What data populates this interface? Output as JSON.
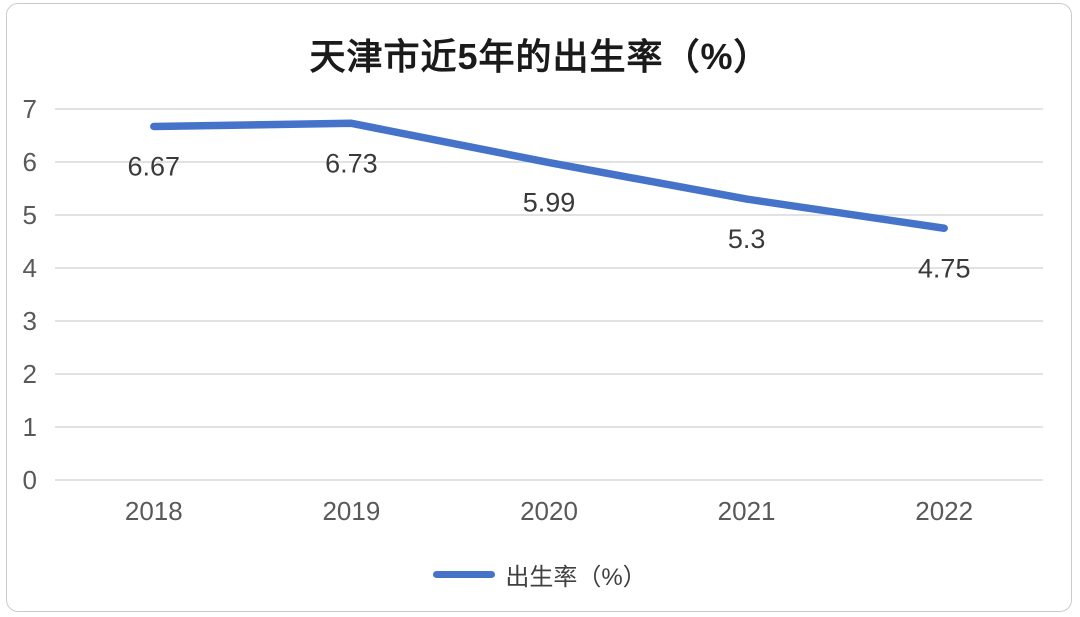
{
  "chart_data": {
    "type": "line",
    "title": "天津市近5年的出生率（%）",
    "categories": [
      "2018",
      "2019",
      "2020",
      "2021",
      "2022"
    ],
    "series": [
      {
        "name": "出生率（%）",
        "values": [
          6.67,
          6.73,
          5.99,
          5.3,
          4.75
        ],
        "color": "#4573c9"
      }
    ],
    "data_labels": [
      "6.67",
      "6.73",
      "5.99",
      "5.3",
      "4.75"
    ],
    "ylim": [
      0,
      7
    ],
    "yticks": [
      0,
      1,
      2,
      3,
      4,
      5,
      6,
      7
    ],
    "xlabel": "",
    "ylabel": "",
    "grid": "horizontal",
    "legend_position": "bottom"
  },
  "colors": {
    "line": "#4573c9",
    "grid": "#d9d9d9",
    "tick_text": "#595959",
    "data_label_text": "#3a3a3a",
    "title_text": "#1a1a1a",
    "card_border": "#cbcbcb",
    "background": "#ffffff"
  }
}
